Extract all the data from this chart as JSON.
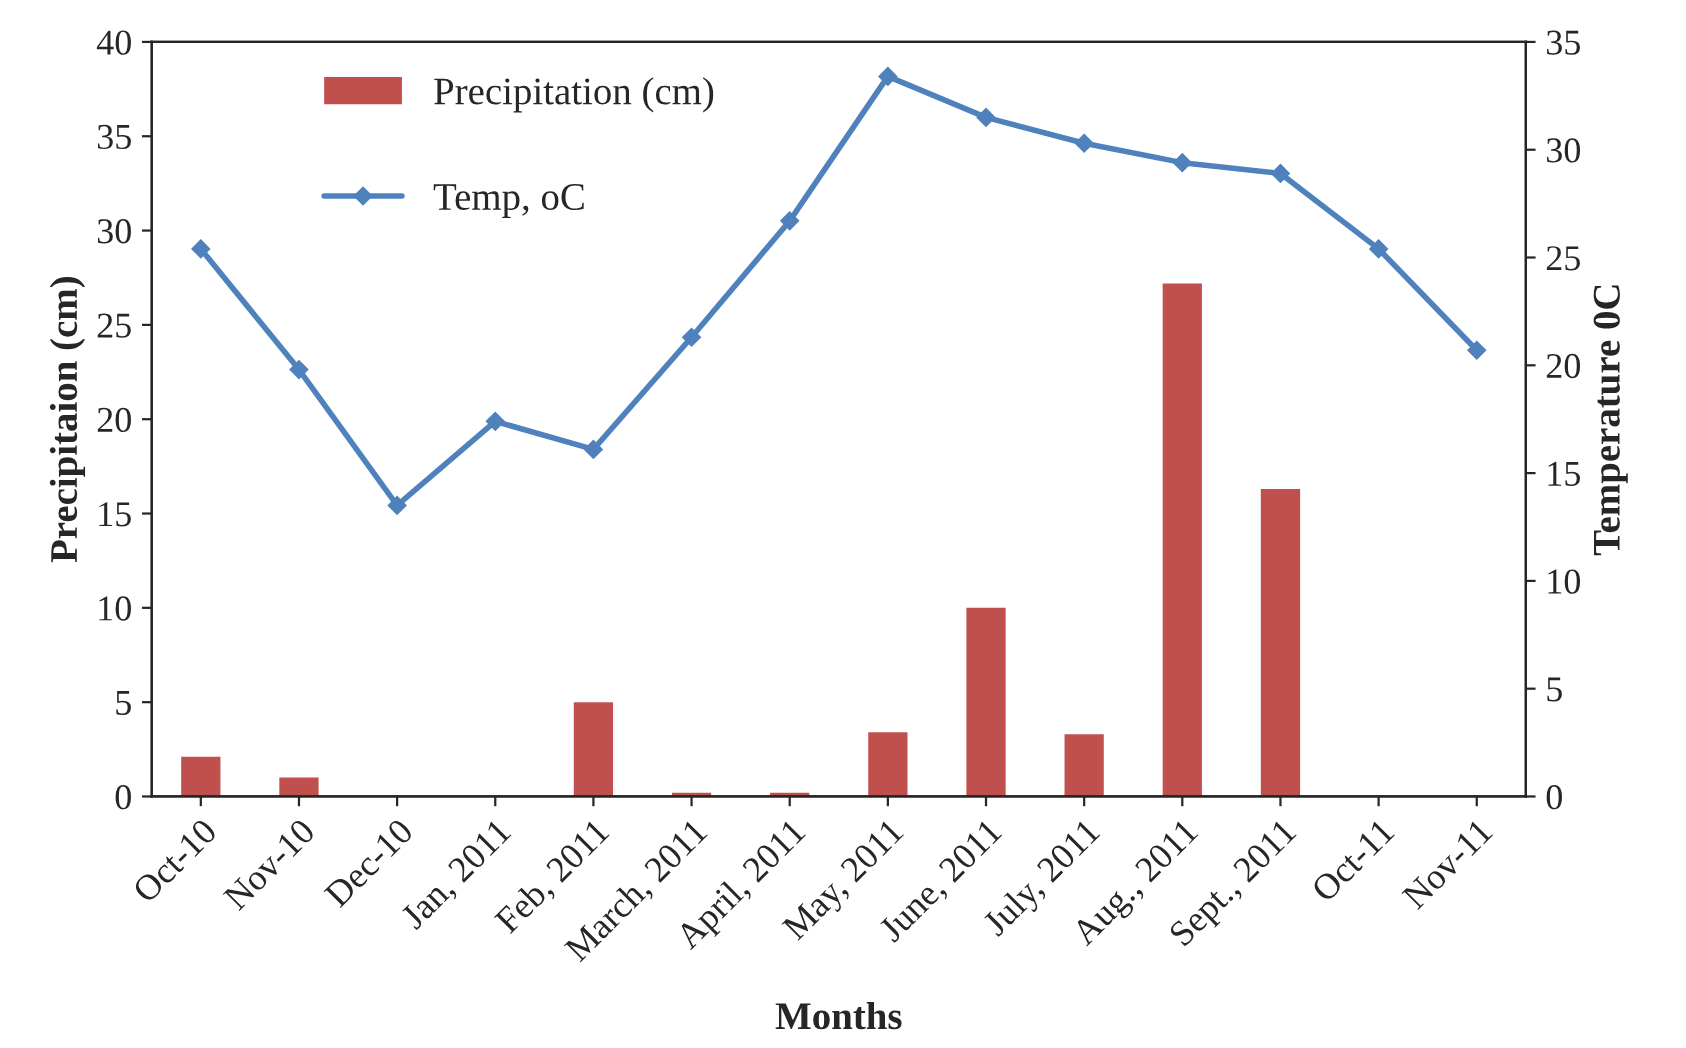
{
  "chart_data": {
    "type": "bar",
    "xlabel": "Months",
    "ylabel": "Precipitaion (cm)",
    "y2label": "Temperature 0C",
    "categories": [
      "Oct-10",
      "Nov-10",
      "Dec-10",
      "Jan, 2011",
      "Feb, 2011",
      "March, 2011",
      "April, 2011",
      "May, 2011",
      "June, 2011",
      "July, 2011",
      "Aug., 2011",
      "Sept., 2011",
      "Oct-11",
      "Nov-11"
    ],
    "series": [
      {
        "name": "Precipitation (cm)",
        "color": "#c0504d",
        "values": [
          2.1,
          1.0,
          0,
          0,
          5.0,
          0.2,
          0.2,
          3.4,
          10.0,
          3.3,
          27.2,
          16.3,
          0,
          0
        ]
      },
      {
        "name": "Temp, oC",
        "type": "line",
        "axis": "y2",
        "color": "#4f81bd",
        "marker": "diamond",
        "values": [
          25.4,
          19.8,
          13.5,
          17.4,
          16.1,
          21.3,
          26.7,
          33.4,
          31.5,
          30.3,
          29.4,
          28.9,
          25.4,
          20.7
        ]
      }
    ],
    "ylim": [
      0,
      40
    ],
    "yticks": [
      0,
      5,
      10,
      15,
      20,
      25,
      30,
      35,
      40
    ],
    "y2lim": [
      0,
      35
    ],
    "y2ticks": [
      0,
      5,
      10,
      15,
      20,
      25,
      30,
      35
    ],
    "legend": "top left",
    "grid": false
  }
}
